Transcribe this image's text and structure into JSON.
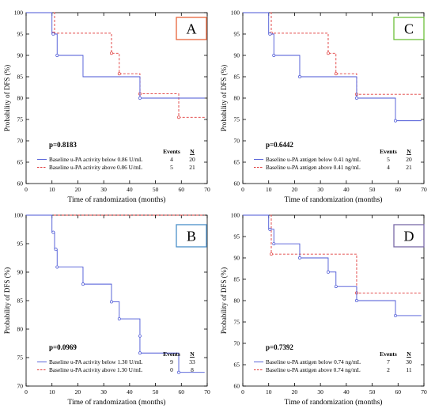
{
  "chart_data": [
    {
      "type": "line",
      "panel_letter": "A",
      "letter_color": "#e8643a",
      "xlabel": "Time of randomization (months)",
      "ylabel": "Probability of DFS (%)",
      "xlim": [
        0,
        70
      ],
      "ylim": [
        60,
        100
      ],
      "x_ticks": [
        0,
        10,
        20,
        30,
        40,
        50,
        60,
        70
      ],
      "y_ticks": [
        60,
        65,
        70,
        75,
        80,
        85,
        90,
        95,
        100
      ],
      "grid": false,
      "p_value": "p=0.8183",
      "legend_headers": [
        "Events",
        "N"
      ],
      "series": [
        {
          "name": "Baseline u-PA activity below 0.86 U/mL",
          "events": "4",
          "n": "20",
          "color": "#4a56d6",
          "dashed": false,
          "steps": [
            [
              0,
              100
            ],
            [
              10,
              100
            ],
            [
              10,
              95
            ],
            [
              12,
              95
            ],
            [
              12,
              90
            ],
            [
              22,
              90
            ],
            [
              22,
              85
            ],
            [
              44,
              85
            ],
            [
              44,
              80
            ],
            [
              69,
              80
            ]
          ],
          "censor": [
            [
              10.5,
              95
            ],
            [
              12,
              90
            ],
            [
              44,
              80
            ]
          ]
        },
        {
          "name": "Baseline u-PA activity above 0.86 U/mL",
          "events": "5",
          "n": "21",
          "color": "#e03a3a",
          "dashed": true,
          "steps": [
            [
              0,
              100
            ],
            [
              11,
              100
            ],
            [
              11,
              95.2
            ],
            [
              33,
              95.2
            ],
            [
              33,
              90.5
            ],
            [
              36,
              90.5
            ],
            [
              36,
              85.7
            ],
            [
              44,
              85.7
            ],
            [
              44,
              81
            ],
            [
              59,
              81
            ],
            [
              59,
              75.5
            ],
            [
              69,
              75.5
            ]
          ],
          "censor": [
            [
              10.5,
              95.2
            ],
            [
              33,
              90.5
            ],
            [
              36,
              85.7
            ],
            [
              44,
              81
            ],
            [
              59,
              75.5
            ]
          ]
        }
      ]
    },
    {
      "type": "line",
      "panel_letter": "C",
      "letter_color": "#6cbf3a",
      "xlabel": "Time of randomization (months)",
      "ylabel": "Probability of DFS (%)",
      "xlim": [
        0,
        70
      ],
      "ylim": [
        60,
        100
      ],
      "x_ticks": [
        0,
        10,
        20,
        30,
        40,
        50,
        60,
        70
      ],
      "y_ticks": [
        60,
        65,
        70,
        75,
        80,
        85,
        90,
        95,
        100
      ],
      "grid": false,
      "p_value": "p=0.6442",
      "legend_headers": [
        "Events",
        "N"
      ],
      "series": [
        {
          "name": "Baseline u-PA antigen below 0.41 ng/mL",
          "events": "5",
          "n": "20",
          "color": "#4a56d6",
          "dashed": false,
          "steps": [
            [
              0,
              100
            ],
            [
              10,
              100
            ],
            [
              10,
              95
            ],
            [
              12,
              95
            ],
            [
              12,
              90
            ],
            [
              22,
              90
            ],
            [
              22,
              85
            ],
            [
              44,
              85
            ],
            [
              44,
              80
            ],
            [
              59,
              80
            ],
            [
              59,
              74.7
            ],
            [
              69,
              74.7
            ]
          ],
          "censor": [
            [
              10.5,
              95
            ],
            [
              12,
              90
            ],
            [
              22,
              85
            ],
            [
              44,
              80
            ],
            [
              59,
              74.7
            ]
          ]
        },
        {
          "name": "Baseline u-PA antigen above 0.41 ng/mL",
          "events": "4",
          "n": "21",
          "color": "#e03a3a",
          "dashed": true,
          "steps": [
            [
              0,
              100
            ],
            [
              11,
              100
            ],
            [
              11,
              95.2
            ],
            [
              33,
              95.2
            ],
            [
              33,
              90.5
            ],
            [
              36,
              90.5
            ],
            [
              36,
              85.7
            ],
            [
              44,
              85.7
            ],
            [
              44,
              80.9
            ],
            [
              69,
              80.9
            ]
          ],
          "censor": [
            [
              11,
              95.2
            ],
            [
              33,
              90.5
            ],
            [
              36,
              85.7
            ],
            [
              44,
              80.9
            ]
          ]
        }
      ]
    },
    {
      "type": "line",
      "panel_letter": "B",
      "letter_color": "#4a90c8",
      "xlabel": "Time of randomization (months)",
      "ylabel": "Probability of DFS (%)",
      "xlim": [
        0,
        70
      ],
      "ylim": [
        70,
        100
      ],
      "x_ticks": [
        0,
        10,
        20,
        30,
        40,
        50,
        60,
        70
      ],
      "y_ticks": [
        70,
        75,
        80,
        85,
        90,
        95,
        100
      ],
      "grid": false,
      "p_value": "p=0.0969",
      "legend_headers": [
        "Events",
        "N"
      ],
      "series": [
        {
          "name": "Baseline u-PA activity below 1.30 U/mL",
          "events": "9",
          "n": "33",
          "color": "#4a56d6",
          "dashed": false,
          "steps": [
            [
              0,
              100
            ],
            [
              10,
              100
            ],
            [
              10,
              97
            ],
            [
              11,
              97
            ],
            [
              11,
              94
            ],
            [
              12,
              94
            ],
            [
              12,
              90.9
            ],
            [
              22,
              90.9
            ],
            [
              22,
              87.9
            ],
            [
              33,
              87.9
            ],
            [
              33,
              84.8
            ],
            [
              36,
              84.8
            ],
            [
              36,
              81.8
            ],
            [
              44,
              81.8
            ],
            [
              44,
              75.8
            ],
            [
              59,
              75.8
            ],
            [
              59,
              72.4
            ],
            [
              69,
              72.4
            ]
          ],
          "censor": [
            [
              10.5,
              97
            ],
            [
              11.5,
              94
            ],
            [
              12,
              90.9
            ],
            [
              22,
              87.9
            ],
            [
              33,
              84.8
            ],
            [
              36,
              81.8
            ],
            [
              44,
              78.8
            ],
            [
              44,
              75.8
            ],
            [
              59,
              72.4
            ]
          ]
        },
        {
          "name": "Baseline u-PA activity above 1.30 U/mL",
          "events": "0",
          "n": "8",
          "color": "#e03a3a",
          "dashed": true,
          "steps": [
            [
              0,
              100
            ],
            [
              69,
              100
            ]
          ],
          "censor": []
        }
      ]
    },
    {
      "type": "line",
      "panel_letter": "D",
      "letter_color": "#7a6aa8",
      "xlabel": "Time of randomization (months)",
      "ylabel": "Probability of DFS (%)",
      "xlim": [
        0,
        70
      ],
      "ylim": [
        60,
        100
      ],
      "x_ticks": [
        0,
        10,
        20,
        30,
        40,
        50,
        60,
        70
      ],
      "y_ticks": [
        60,
        65,
        70,
        75,
        80,
        85,
        90,
        95,
        100
      ],
      "grid": false,
      "p_value": "p=0.7392",
      "legend_headers": [
        "Events",
        "N"
      ],
      "series": [
        {
          "name": "Baseline u-PA antigen below 0.74 ng/mL",
          "events": "7",
          "n": "30",
          "color": "#4a56d6",
          "dashed": false,
          "steps": [
            [
              0,
              100
            ],
            [
              10,
              100
            ],
            [
              10,
              96.7
            ],
            [
              12,
              96.7
            ],
            [
              12,
              93.3
            ],
            [
              22,
              93.3
            ],
            [
              22,
              90
            ],
            [
              33,
              90
            ],
            [
              33,
              86.7
            ],
            [
              36,
              86.7
            ],
            [
              36,
              83.3
            ],
            [
              44,
              83.3
            ],
            [
              44,
              80
            ],
            [
              59,
              80
            ],
            [
              59,
              76.5
            ],
            [
              69,
              76.5
            ]
          ],
          "censor": [
            [
              10.5,
              96.7
            ],
            [
              12,
              93.3
            ],
            [
              22,
              90
            ],
            [
              33,
              86.7
            ],
            [
              36,
              83.3
            ],
            [
              44,
              80
            ],
            [
              59,
              76.5
            ]
          ]
        },
        {
          "name": "Baseline u-PA antigen above 0.74 ng/mL",
          "events": "2",
          "n": "11",
          "color": "#e03a3a",
          "dashed": true,
          "steps": [
            [
              0,
              100
            ],
            [
              11,
              100
            ],
            [
              11,
              90.9
            ],
            [
              44,
              90.9
            ],
            [
              44,
              81.8
            ],
            [
              69,
              81.8
            ]
          ],
          "censor": [
            [
              11,
              90.9
            ],
            [
              44,
              81.8
            ]
          ]
        }
      ]
    }
  ]
}
